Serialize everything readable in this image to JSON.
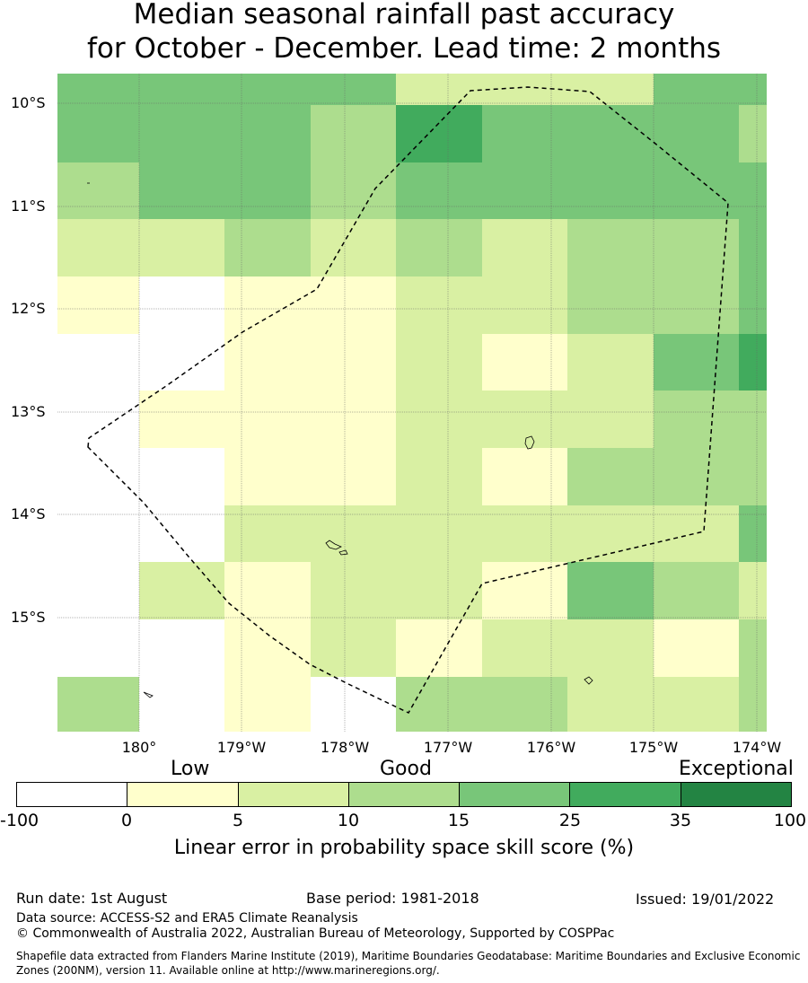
{
  "title": {
    "line1": "Median seasonal rainfall past accuracy",
    "line2": "for October - December. Lead time: 2 months"
  },
  "map": {
    "lat_labels": [
      "10°S",
      "11°S",
      "12°S",
      "13°S",
      "14°S",
      "15°S"
    ],
    "lon_labels": [
      "180°",
      "179°W",
      "178°W",
      "177°W",
      "176°W",
      "175°W",
      "174°W"
    ],
    "boundary_style": "dashed black EEZ outline",
    "grid_colors": [
      "#78c679",
      "#78c679",
      "#78c679",
      "#78c679",
      "#d9f0a3",
      "#d9f0a3",
      "#d9f0a3",
      "#78c679",
      "#78c679",
      "#78c679",
      "#78c679",
      "#78c679",
      "#addd8e",
      "#41ab5d",
      "#78c679",
      "#78c679",
      "#78c679",
      "#addd8e",
      "#addd8e",
      "#78c679",
      "#78c679",
      "#addd8e",
      "#78c679",
      "#78c679",
      "#78c679",
      "#78c679",
      "#78c679",
      "#d9f0a3",
      "#d9f0a3",
      "#addd8e",
      "#d9f0a3",
      "#addd8e",
      "#d9f0a3",
      "#addd8e",
      "#addd8e",
      "#78c679",
      "#ffffcc",
      "#ffffff",
      "#ffffcc",
      "#ffffcc",
      "#d9f0a3",
      "#d9f0a3",
      "#addd8e",
      "#addd8e",
      "#78c679",
      "#ffffff",
      "#ffffff",
      "#ffffcc",
      "#ffffcc",
      "#d9f0a3",
      "#ffffcc",
      "#d9f0a3",
      "#78c679",
      "#41ab5d",
      "#ffffff",
      "#ffffcc",
      "#ffffcc",
      "#ffffcc",
      "#d9f0a3",
      "#d9f0a3",
      "#d9f0a3",
      "#addd8e",
      "#addd8e",
      "#ffffff",
      "#ffffff",
      "#ffffcc",
      "#ffffcc",
      "#d9f0a3",
      "#ffffcc",
      "#addd8e",
      "#addd8e",
      "#addd8e",
      "#ffffff",
      "#ffffff",
      "#d9f0a3",
      "#d9f0a3",
      "#d9f0a3",
      "#d9f0a3",
      "#d9f0a3",
      "#d9f0a3",
      "#78c679",
      "#ffffff",
      "#d9f0a3",
      "#ffffcc",
      "#d9f0a3",
      "#d9f0a3",
      "#ffffcc",
      "#78c679",
      "#addd8e",
      "#d9f0a3",
      "#ffffff",
      "#ffffff",
      "#ffffcc",
      "#d9f0a3",
      "#ffffcc",
      "#d9f0a3",
      "#d9f0a3",
      "#ffffcc",
      "#addd8e",
      "#addd8e",
      "#ffffff",
      "#ffffcc",
      "#ffffff",
      "#addd8e",
      "#addd8e",
      "#d9f0a3",
      "#d9f0a3",
      "#addd8e"
    ]
  },
  "colorbar": {
    "categories": [
      "Low",
      "Good",
      "Exceptional"
    ],
    "segments": [
      {
        "from": "-100",
        "to": "0",
        "color": "#ffffff"
      },
      {
        "from": "0",
        "to": "5",
        "color": "#ffffcc"
      },
      {
        "from": "5",
        "to": "10",
        "color": "#d9f0a3"
      },
      {
        "from": "10",
        "to": "15",
        "color": "#addd8e"
      },
      {
        "from": "15",
        "to": "25",
        "color": "#78c679"
      },
      {
        "from": "25",
        "to": "35",
        "color": "#41ab5d"
      },
      {
        "from": "35",
        "to": "100",
        "color": "#238443"
      }
    ],
    "ticks": [
      "-100",
      "0",
      "5",
      "10",
      "15",
      "25",
      "35",
      "100"
    ],
    "label": "Linear error in probability space skill score (%)"
  },
  "footer": {
    "run_date": "Run date: 1st August",
    "base_period": "Base period: 1981-2018",
    "issued": "Issued: 19/01/2022",
    "data_source": "Data source: ACCESS-S2 and ERA5 Climate Reanalysis",
    "copyright": "© Commonwealth of Australia 2022, Australian Bureau of Meteorology, Supported by COSPPac",
    "shapefile": "Shapefile data extracted from Flanders Marine Institute (2019), Maritime Boundaries Geodatabase: Maritime Boundaries and Exclusive Economic Zones (200NM), version 11. Available online at http://www.marineregions.org/."
  }
}
